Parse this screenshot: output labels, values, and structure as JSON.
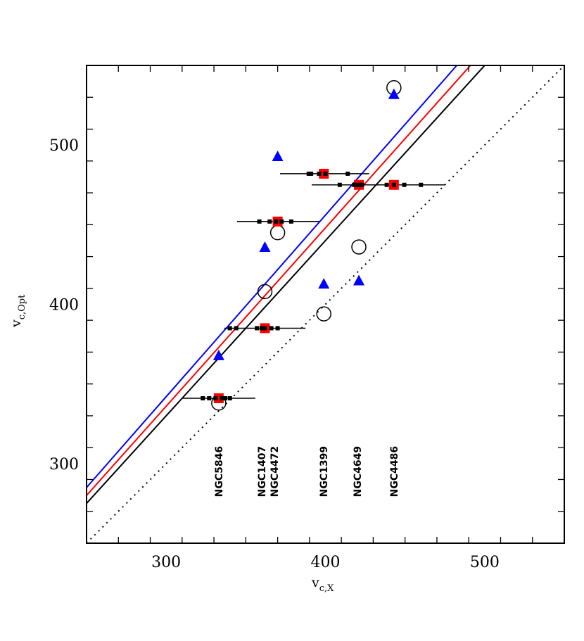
{
  "chart_data": {
    "type": "scatter",
    "title": "",
    "xlabel": {
      "main": "v",
      "sub": "c,X"
    },
    "ylabel": {
      "main": "v",
      "sub": "c,Opt"
    },
    "xlim": [
      250,
      550
    ],
    "ylim": [
      250,
      550
    ],
    "x_major_ticks": [
      300,
      400,
      500
    ],
    "y_major_ticks": [
      300,
      400,
      500
    ],
    "minor_tick_step": 20,
    "grid": false,
    "colors": {
      "square": "#ff0000",
      "triangle": "#0000ff",
      "circle": "#000000",
      "fit_black": "#000000",
      "fit_red": "#ff0000",
      "fit_blue": "#0000ff"
    },
    "lines": [
      {
        "style": "dotted",
        "color": "#000000",
        "slope": 1.0,
        "intercept": 0
      },
      {
        "style": "solid",
        "color": "#000000",
        "slope": 1.1,
        "intercept": 0
      },
      {
        "style": "solid",
        "color": "#ff0000",
        "slope": 1.12,
        "intercept": 0
      },
      {
        "style": "solid",
        "color": "#0000ff",
        "slope": 1.14,
        "intercept": 0
      }
    ],
    "squares": [
      {
        "x": 333,
        "y": 341,
        "err": [
          310,
          356
        ],
        "markers": [
          323,
          327,
          331,
          335,
          337,
          340
        ]
      },
      {
        "x": 362,
        "y": 385,
        "err": [
          336.5,
          387.5
        ],
        "markers": [
          340,
          344,
          357,
          360,
          362,
          366,
          370
        ]
      },
      {
        "x": 370,
        "y": 452,
        "err": [
          344.5,
          396
        ],
        "markers": [
          358.5,
          365,
          369,
          372.5,
          378.5
        ]
      },
      {
        "x": 399,
        "y": 482,
        "err": [
          371.5,
          427.5
        ],
        "markers": [
          389.5,
          391,
          396,
          400,
          414
        ]
      },
      {
        "x": 421,
        "y": 475,
        "err": [
          391.5,
          475
        ],
        "markers": [
          409,
          418,
          420,
          422,
          423
        ]
      },
      {
        "x": 443,
        "y": 475,
        "err": [
          391.5,
          475
        ],
        "markers": [
          438.5,
          443,
          449.5,
          460
        ]
      }
    ],
    "triangles": [
      {
        "x": 333,
        "y": 368
      },
      {
        "x": 362,
        "y": 436
      },
      {
        "x": 370,
        "y": 493
      },
      {
        "x": 399,
        "y": 413
      },
      {
        "x": 421,
        "y": 415
      },
      {
        "x": 443,
        "y": 532
      }
    ],
    "circles": [
      {
        "x": 333,
        "y": 338
      },
      {
        "x": 362,
        "y": 408
      },
      {
        "x": 370,
        "y": 445
      },
      {
        "x": 399,
        "y": 394
      },
      {
        "x": 421,
        "y": 436
      },
      {
        "x": 443,
        "y": 536
      }
    ],
    "annotations": [
      {
        "text": "NGC5846",
        "x": 333
      },
      {
        "text": "NGC1407",
        "x": 360
      },
      {
        "text": "NGC4472",
        "x": 368
      },
      {
        "text": "NGC1399",
        "x": 399
      },
      {
        "text": "NGC4649",
        "x": 420
      },
      {
        "text": "NGC4486",
        "x": 443
      }
    ],
    "annotation_baseline_y": 279
  }
}
